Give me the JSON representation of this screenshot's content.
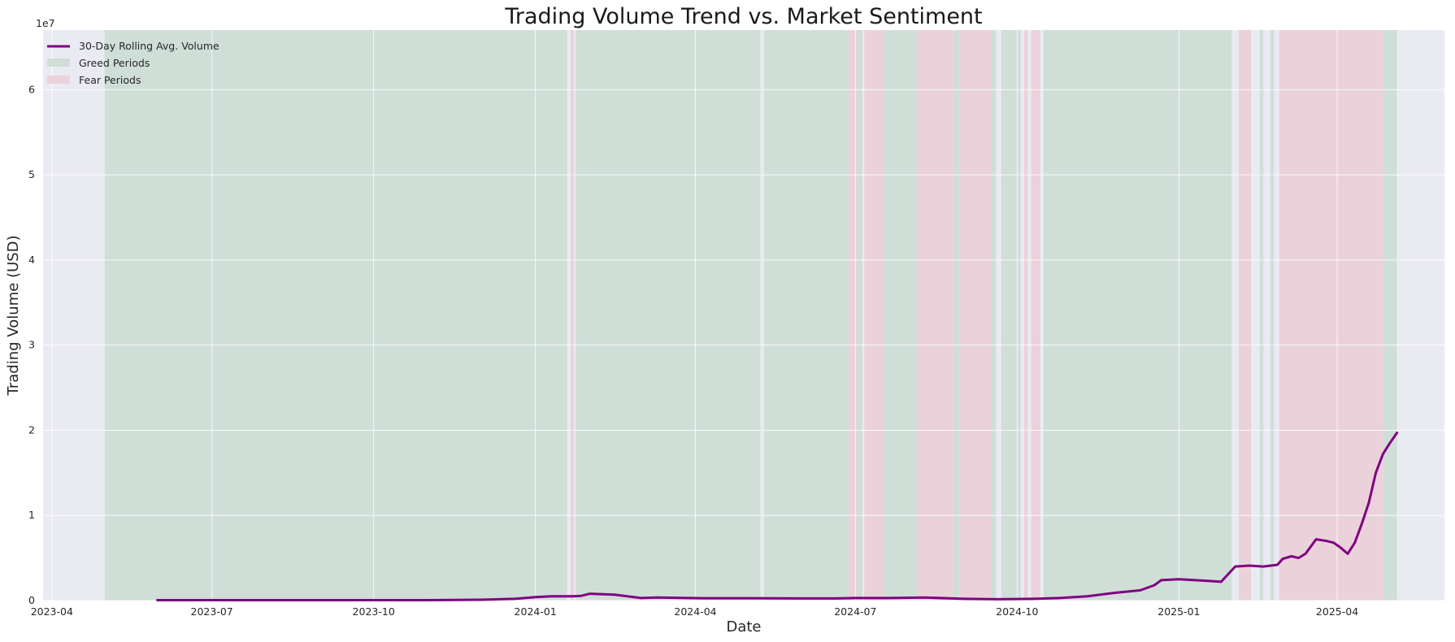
{
  "chart_data": {
    "type": "line",
    "title": "Trading Volume Trend vs. Market Sentiment",
    "xlabel": "Date",
    "ylabel": "Trading Volume (USD)",
    "y_multiplier_label": "1e7",
    "xlim": [
      "2023-03-27",
      "2025-06-01"
    ],
    "ylim": [
      0,
      6.7
    ],
    "y_unit_note": "values in units of 1e7 USD",
    "grid": true,
    "legend_position": "top-left",
    "x_ticks": [
      "2023-04-01",
      "2023-07-01",
      "2023-10-01",
      "2024-01-01",
      "2024-04-01",
      "2024-07-01",
      "2024-10-01",
      "2025-01-01",
      "2025-04-01"
    ],
    "x_tick_labels": [
      "2023-04",
      "2023-07",
      "2023-10",
      "2024-01",
      "2024-04",
      "2024-07",
      "2024-10",
      "2025-01",
      "2025-04"
    ],
    "y_ticks": [
      0,
      1,
      2,
      3,
      4,
      5,
      6
    ],
    "y_tick_labels": [
      "0",
      "1",
      "2",
      "3",
      "4",
      "5",
      "6"
    ],
    "legend": [
      {
        "label": "30-Day Rolling Avg. Volume",
        "kind": "line",
        "color": "#800080"
      },
      {
        "label": "Greed Periods",
        "kind": "patch",
        "color": "#d0ded8"
      },
      {
        "label": "Fear Periods",
        "kind": "patch",
        "color": "#ebd2da"
      }
    ],
    "colors": {
      "plot_background": "#eaeaf2",
      "grid": "#ffffff",
      "line": "#800080",
      "greed": "#d0ded8",
      "fear": "#ebd2da"
    },
    "greed_periods": [
      [
        "2023-05-01",
        "2024-01-19"
      ],
      [
        "2024-01-24",
        "2024-05-08"
      ],
      [
        "2024-05-10",
        "2024-06-27"
      ],
      [
        "2024-07-02",
        "2024-07-05"
      ],
      [
        "2024-07-17",
        "2024-08-05"
      ],
      [
        "2024-08-26",
        "2024-08-29"
      ],
      [
        "2024-09-16",
        "2024-09-19"
      ],
      [
        "2024-09-22",
        "2024-10-03"
      ],
      [
        "2024-10-16",
        "2025-01-31"
      ],
      [
        "2025-02-16",
        "2025-02-18"
      ],
      [
        "2025-02-22",
        "2025-02-24"
      ],
      [
        "2025-04-27",
        "2025-05-05"
      ]
    ],
    "fear_periods": [
      [
        "2024-01-21",
        "2024-01-23"
      ],
      [
        "2024-06-27",
        "2024-07-02"
      ],
      [
        "2024-07-06",
        "2024-07-17"
      ],
      [
        "2024-08-05",
        "2024-08-26"
      ],
      [
        "2024-08-29",
        "2024-09-16"
      ],
      [
        "2024-10-05",
        "2024-10-07"
      ],
      [
        "2024-10-09",
        "2024-10-14"
      ],
      [
        "2025-02-04",
        "2025-02-11"
      ],
      [
        "2025-02-27",
        "2025-04-27"
      ]
    ],
    "series": [
      {
        "name": "30-Day Rolling Avg. Volume",
        "x": [
          "2023-05-31",
          "2023-07-01",
          "2023-08-01",
          "2023-09-01",
          "2023-10-01",
          "2023-11-01",
          "2023-12-01",
          "2023-12-20",
          "2024-01-01",
          "2024-01-10",
          "2024-01-22",
          "2024-01-27",
          "2024-02-01",
          "2024-02-15",
          "2024-03-01",
          "2024-03-10",
          "2024-04-05",
          "2024-05-01",
          "2024-06-01",
          "2024-06-20",
          "2024-07-01",
          "2024-07-20",
          "2024-08-10",
          "2024-09-01",
          "2024-09-20",
          "2024-10-10",
          "2024-10-25",
          "2024-11-10",
          "2024-11-25",
          "2024-12-10",
          "2024-12-18",
          "2024-12-22",
          "2025-01-01",
          "2025-01-10",
          "2025-01-18",
          "2025-01-25",
          "2025-02-02",
          "2025-02-10",
          "2025-02-18",
          "2025-02-26",
          "2025-03-01",
          "2025-03-06",
          "2025-03-10",
          "2025-03-14",
          "2025-03-20",
          "2025-03-26",
          "2025-03-30",
          "2025-04-03",
          "2025-04-07",
          "2025-04-11",
          "2025-04-15",
          "2025-04-19",
          "2025-04-23",
          "2025-04-27",
          "2025-05-01",
          "2025-05-05"
        ],
        "y": [
          0.005,
          0.005,
          0.005,
          0.005,
          0.005,
          0.005,
          0.01,
          0.02,
          0.04,
          0.05,
          0.05,
          0.055,
          0.08,
          0.07,
          0.03,
          0.035,
          0.028,
          0.028,
          0.025,
          0.025,
          0.03,
          0.03,
          0.035,
          0.02,
          0.015,
          0.02,
          0.03,
          0.05,
          0.09,
          0.12,
          0.18,
          0.24,
          0.25,
          0.24,
          0.23,
          0.22,
          0.4,
          0.41,
          0.4,
          0.42,
          0.49,
          0.52,
          0.5,
          0.55,
          0.72,
          0.7,
          0.68,
          0.62,
          0.55,
          0.68,
          0.9,
          1.15,
          1.5,
          1.72,
          1.85,
          1.97
        ]
      }
    ]
  }
}
